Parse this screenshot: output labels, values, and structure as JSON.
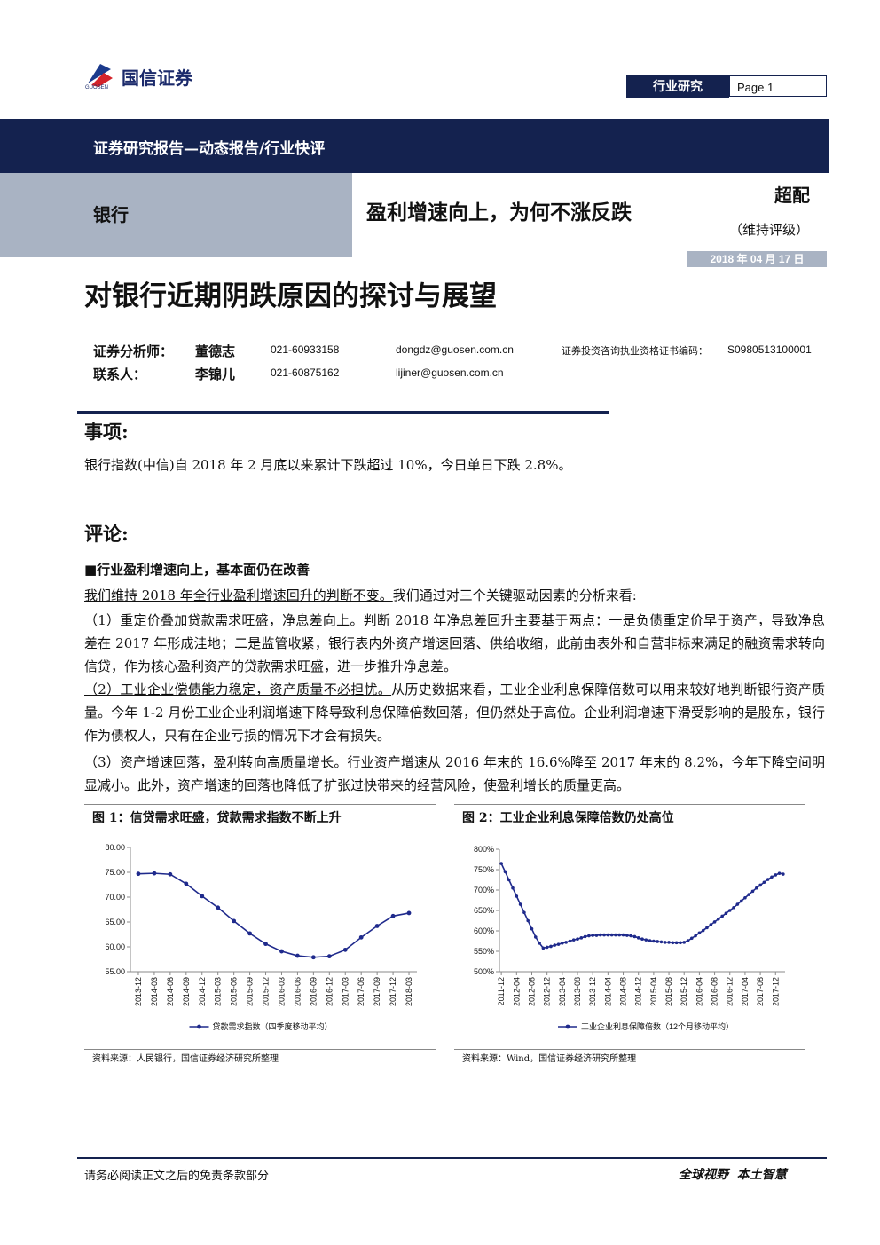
{
  "header": {
    "logo": "国信证券",
    "logo_sub": "GUOSEN",
    "tag": "行业研究",
    "page": "Page 1"
  },
  "banner": "证券研究报告—动态报告/行业快评",
  "sector": "银行",
  "headline": "盈利增速向上，为何不涨反跌",
  "rating": "超配",
  "rating_note": "（维持评级）",
  "date": "2018 年 04 月 17 日",
  "title": "对银行近期阴跌原因的探讨与展望",
  "analysts": [
    [
      "证券分析师：",
      "董德志",
      "021-60933158",
      "dongdz@guosen.com.cn",
      "证券投资咨询执业资格证书编码：",
      "S0980513100001"
    ],
    [
      "联系人：",
      "李锦儿",
      "021-60875162",
      "lijiner@guosen.com.cn"
    ]
  ],
  "event": {
    "heading": "事项:",
    "text": "银行指数(中信)自 2018 年 2 月底以来累计下跌超过 10%，今日单日下跌 2.8%。"
  },
  "comment": {
    "heading": "评论:",
    "subheading": "■行业盈利增速向上，基本面仍在改善",
    "paragraphs": [
      {
        "lead": "我们维持 2018 年全行业盈利增速回升的判断不变。",
        "text": "我们通过对三个关键驱动因素的分析来看:"
      },
      {
        "lead": "（1）重定价叠加贷款需求旺盛，净息差向上。",
        "text": "判断 2018 年净息差回升主要基于两点：一是负债重定价早于资产，导致净息差在 2017 年形成洼地；二是监管收紧，银行表内外资产增速回落、供给收缩，此前由表外和自营非标来满足的融资需求转向信贷，作为核心盈利资产的贷款需求旺盛，进一步推升净息差。"
      },
      {
        "lead": "（2）工业企业偿债能力稳定，资产质量不必担忧。",
        "text": "从历史数据来看，工业企业利息保障倍数可以用来较好地判断银行资产质量。今年 1-2 月份工业企业利润增速下降导致利息保障倍数回落，但仍然处于高位。企业利润增速下滑受影响的是股东，银行作为债权人，只有在企业亏损的情况下才会有损失。"
      },
      {
        "lead": "（3）资产增速回落，盈利转向高质量增长。",
        "text": "行业资产增速从 2016 年末的 16.6%降至 2017 年末的 8.2%，今年下降空间明显减小。此外，资产增速的回落也降低了扩张过快带来的经营风险，使盈利增长的质量更高。"
      }
    ]
  },
  "chart_data": [
    {
      "type": "line",
      "title": "图 1：信贷需求旺盛，贷款需求指数不断上升",
      "source": "资料来源：人民银行，国信证券经济研究所整理",
      "categories": [
        "2013-12",
        "2014-03",
        "2014-06",
        "2014-09",
        "2014-12",
        "2015-03",
        "2015-06",
        "2015-09",
        "2015-12",
        "2016-03",
        "2016-06",
        "2016-09",
        "2016-12",
        "2017-03",
        "2017-06",
        "2017-09",
        "2017-12",
        "2018-03"
      ],
      "series": [
        {
          "name": "贷款需求指数（四季度移动平均）",
          "color": "#1f2a8c",
          "values": [
            74.7,
            74.8,
            74.6,
            72.7,
            70.2,
            67.9,
            65.2,
            62.7,
            60.6,
            59.1,
            58.2,
            57.9,
            58.1,
            59.4,
            61.9,
            64.2,
            66.2,
            66.8
          ]
        }
      ],
      "ylim": [
        55,
        80
      ],
      "yticks": [
        {
          "value": 55,
          "label": "55.00"
        },
        {
          "value": 60,
          "label": "60.00"
        },
        {
          "value": 65,
          "label": "65.00"
        },
        {
          "value": 70,
          "label": "70.00"
        },
        {
          "value": 75,
          "label": "75.00"
        },
        {
          "value": 80,
          "label": "80.00"
        }
      ]
    },
    {
      "type": "line",
      "title": "图 2：工业企业利息保障倍数仍处高位",
      "source": "资料来源：Wind，国信证券经济研究所整理",
      "categories": [
        "2011-12",
        null,
        null,
        null,
        "2012-04",
        null,
        null,
        null,
        "2012-08",
        null,
        null,
        null,
        "2012-12",
        null,
        null,
        null,
        "2013-04",
        null,
        null,
        null,
        "2013-08",
        null,
        null,
        null,
        "2013-12",
        null,
        null,
        null,
        "2014-04",
        null,
        null,
        null,
        "2014-08",
        null,
        null,
        null,
        "2014-12",
        null,
        null,
        null,
        "2015-04",
        null,
        null,
        null,
        "2015-08",
        null,
        null,
        null,
        "2015-12",
        null,
        null,
        null,
        "2016-04",
        null,
        null,
        null,
        "2016-08",
        null,
        null,
        null,
        "2016-12",
        null,
        null,
        null,
        "2017-04",
        null,
        null,
        null,
        "2017-08",
        null,
        null,
        null,
        "2017-12",
        null,
        null
      ],
      "series": [
        {
          "name": "工业企业利息保障倍数（12个月移动平均）",
          "color": "#1f2a8c",
          "values": [
            765,
            745,
            725,
            705,
            685,
            665,
            645,
            625,
            605,
            585,
            570,
            558,
            560,
            562,
            565,
            567,
            570,
            572,
            575,
            578,
            580,
            583,
            586,
            588,
            589,
            589,
            590,
            590,
            590,
            590,
            590,
            590,
            590,
            589,
            588,
            586,
            583,
            580,
            578,
            576,
            575,
            574,
            573,
            572,
            572,
            571,
            571,
            571,
            572,
            576,
            582,
            588,
            595,
            601,
            608,
            615,
            622,
            629,
            636,
            643,
            650,
            657,
            665,
            673,
            681,
            689,
            697,
            705,
            712,
            719,
            726,
            732,
            737,
            741,
            739
          ]
        }
      ],
      "ylim": [
        500,
        800
      ],
      "yticks": [
        {
          "value": 500,
          "label": "500%"
        },
        {
          "value": 550,
          "label": "550%"
        },
        {
          "value": 600,
          "label": "600%"
        },
        {
          "value": 650,
          "label": "650%"
        },
        {
          "value": 700,
          "label": "700%"
        },
        {
          "value": 750,
          "label": "750%"
        },
        {
          "value": 800,
          "label": "800%"
        }
      ]
    }
  ],
  "footer": {
    "disclaimer": "请务必阅读正文之后的免责条款部分",
    "slogan": "全球视野  本土智慧"
  }
}
